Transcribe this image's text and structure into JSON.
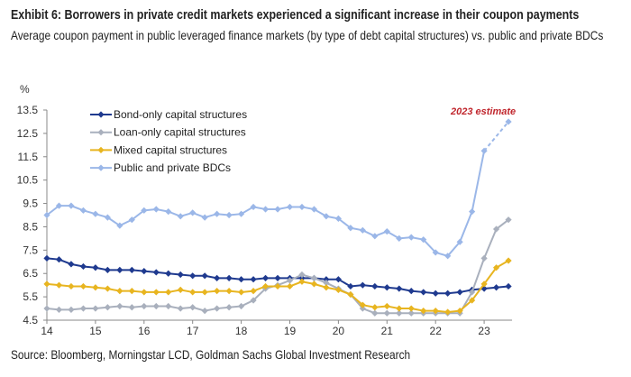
{
  "header": {
    "title": "Exhibit 6: Borrowers in private credit markets experienced a significant increase in their coupon payments",
    "subtitle": "Average coupon payment in public leveraged finance markets (by type of debt capital structures) vs. public and private BDCs"
  },
  "footer": {
    "source": "Source: Bloomberg, Morningstar LCD, Goldman Sachs Global Investment Research"
  },
  "chart_data": {
    "type": "line",
    "ylabel": "%",
    "ylim": [
      4.5,
      13.5
    ],
    "yticks": [
      "13.5",
      "12.5",
      "11.5",
      "10.5",
      "9.5",
      "8.5",
      "7.5",
      "6.5",
      "5.5",
      "4.5"
    ],
    "xlim": [
      14,
      23.5
    ],
    "xticks": [
      "14",
      "15",
      "16",
      "17",
      "18",
      "19",
      "20",
      "21",
      "22",
      "23"
    ],
    "grid": false,
    "legend": "top-left",
    "annotation": "2023 estimate",
    "series": [
      {
        "name": "Bond-only capital structures",
        "color": "#1f3a8f",
        "x": [
          14,
          14.25,
          14.5,
          14.75,
          15,
          15.25,
          15.5,
          15.75,
          16,
          16.25,
          16.5,
          16.75,
          17,
          17.25,
          17.5,
          17.75,
          18,
          18.25,
          18.5,
          18.75,
          19,
          19.25,
          19.5,
          19.75,
          20,
          20.25,
          20.5,
          20.75,
          21,
          21.25,
          21.5,
          21.75,
          22,
          22.25,
          22.5,
          22.75,
          23,
          23.25,
          23.5
        ],
        "values": [
          7.15,
          7.1,
          6.9,
          6.8,
          6.75,
          6.65,
          6.65,
          6.65,
          6.6,
          6.55,
          6.5,
          6.45,
          6.4,
          6.4,
          6.3,
          6.3,
          6.25,
          6.25,
          6.3,
          6.3,
          6.3,
          6.3,
          6.3,
          6.25,
          6.25,
          5.95,
          6.0,
          5.95,
          5.9,
          5.85,
          5.75,
          5.7,
          5.65,
          5.65,
          5.7,
          5.8,
          5.85,
          5.9,
          5.95
        ]
      },
      {
        "name": "Loan-only capital structures",
        "color": "#a9b0bd",
        "x": [
          14,
          14.25,
          14.5,
          14.75,
          15,
          15.25,
          15.5,
          15.75,
          16,
          16.25,
          16.5,
          16.75,
          17,
          17.25,
          17.5,
          17.75,
          18,
          18.25,
          18.5,
          18.75,
          19,
          19.25,
          19.5,
          19.75,
          20,
          20.25,
          20.5,
          20.75,
          21,
          21.25,
          21.5,
          21.75,
          22,
          22.25,
          22.5,
          22.75,
          23,
          23.25,
          23.5
        ],
        "values": [
          5.0,
          4.95,
          4.95,
          5.0,
          5.0,
          5.05,
          5.1,
          5.05,
          5.1,
          5.1,
          5.1,
          5.0,
          5.05,
          4.9,
          5.0,
          5.05,
          5.1,
          5.35,
          5.85,
          6.0,
          6.2,
          6.45,
          6.3,
          6.1,
          5.85,
          5.6,
          5.0,
          4.8,
          4.8,
          4.8,
          4.8,
          4.8,
          4.8,
          4.8,
          4.8,
          5.7,
          7.15,
          8.4,
          8.8
        ]
      },
      {
        "name": "Mixed capital structures",
        "color": "#e8b520",
        "x": [
          14,
          14.25,
          14.5,
          14.75,
          15,
          15.25,
          15.5,
          15.75,
          16,
          16.25,
          16.5,
          16.75,
          17,
          17.25,
          17.5,
          17.75,
          18,
          18.25,
          18.5,
          18.75,
          19,
          19.25,
          19.5,
          19.75,
          20,
          20.25,
          20.5,
          20.75,
          21,
          21.25,
          21.5,
          21.75,
          22,
          22.25,
          22.5,
          22.75,
          23,
          23.25,
          23.5
        ],
        "values": [
          6.05,
          6.0,
          5.95,
          5.95,
          5.9,
          5.85,
          5.75,
          5.75,
          5.7,
          5.7,
          5.7,
          5.8,
          5.7,
          5.7,
          5.75,
          5.75,
          5.7,
          5.75,
          5.95,
          5.95,
          5.95,
          6.15,
          6.05,
          5.9,
          5.8,
          5.6,
          5.15,
          5.05,
          5.1,
          5.0,
          5.0,
          4.9,
          4.9,
          4.85,
          4.9,
          5.35,
          6.05,
          6.75,
          7.05
        ]
      },
      {
        "name": "Public and private BDCs",
        "color": "#9bb7e8",
        "x": [
          14,
          14.25,
          14.5,
          14.75,
          15,
          15.25,
          15.5,
          15.75,
          16,
          16.25,
          16.5,
          16.75,
          17,
          17.25,
          17.5,
          17.75,
          18,
          18.25,
          18.5,
          18.75,
          19,
          19.25,
          19.5,
          19.75,
          20,
          20.25,
          20.5,
          20.75,
          21,
          21.25,
          21.5,
          21.75,
          22,
          22.25,
          22.5,
          22.75,
          23,
          23.5
        ],
        "values": [
          9.0,
          9.4,
          9.4,
          9.2,
          9.05,
          8.9,
          8.55,
          8.8,
          9.2,
          9.25,
          9.15,
          8.95,
          9.1,
          8.9,
          9.05,
          9.0,
          9.05,
          9.35,
          9.25,
          9.25,
          9.35,
          9.35,
          9.25,
          8.95,
          8.85,
          8.45,
          8.35,
          8.1,
          8.3,
          8.0,
          8.05,
          7.95,
          7.4,
          7.25,
          7.85,
          9.15,
          11.75,
          13.0
        ],
        "dashed_from": 23
      }
    ]
  }
}
